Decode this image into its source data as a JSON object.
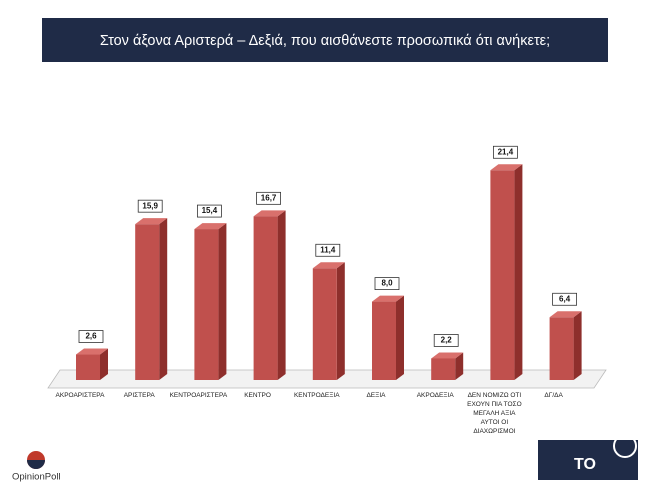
{
  "chart_data": {
    "type": "bar3d",
    "title": "Στον άξονα Αριστερά – Δεξιά, που αισθάνεστε προσωπικά ότι ανήκετε;",
    "categories": [
      "ΑΚΡΟΑΡΙΣΤΕΡΑ",
      "ΑΡΙΣΤΕΡΑ",
      "ΚΕΝΤΡΟΑΡΙΣΤΕΡΑ",
      "ΚΕΝΤΡΟ",
      "ΚΕΝΤΡΟΔΕΞΙΑ",
      "ΔΕΞΙΑ",
      "ΑΚΡΟΔΕΞΙΑ",
      "ΔΕΝ ΝΟΜΙΖΩ ΟΤΙ ΕΧΟΥΝ ΠΙΑ ΤΟΣΟ ΜΕΓΑΛΗ ΑΞΙΑ ΑΥΤΟΙ ΟΙ ΔΙΑΧΩΡΙΣΜΟΙ",
      "ΔΓ/ΔΑ"
    ],
    "values": [
      2.6,
      15.9,
      15.4,
      16.7,
      11.4,
      8.0,
      2.2,
      21.4,
      6.4
    ],
    "value_labels": [
      "2,6",
      "15,9",
      "15,4",
      "16,7",
      "11,4",
      "8,0",
      "2,2",
      "21,4",
      "6,4"
    ],
    "color": "#c0504d",
    "logo_left": "OpinionPoll",
    "logo_right": "TO"
  }
}
